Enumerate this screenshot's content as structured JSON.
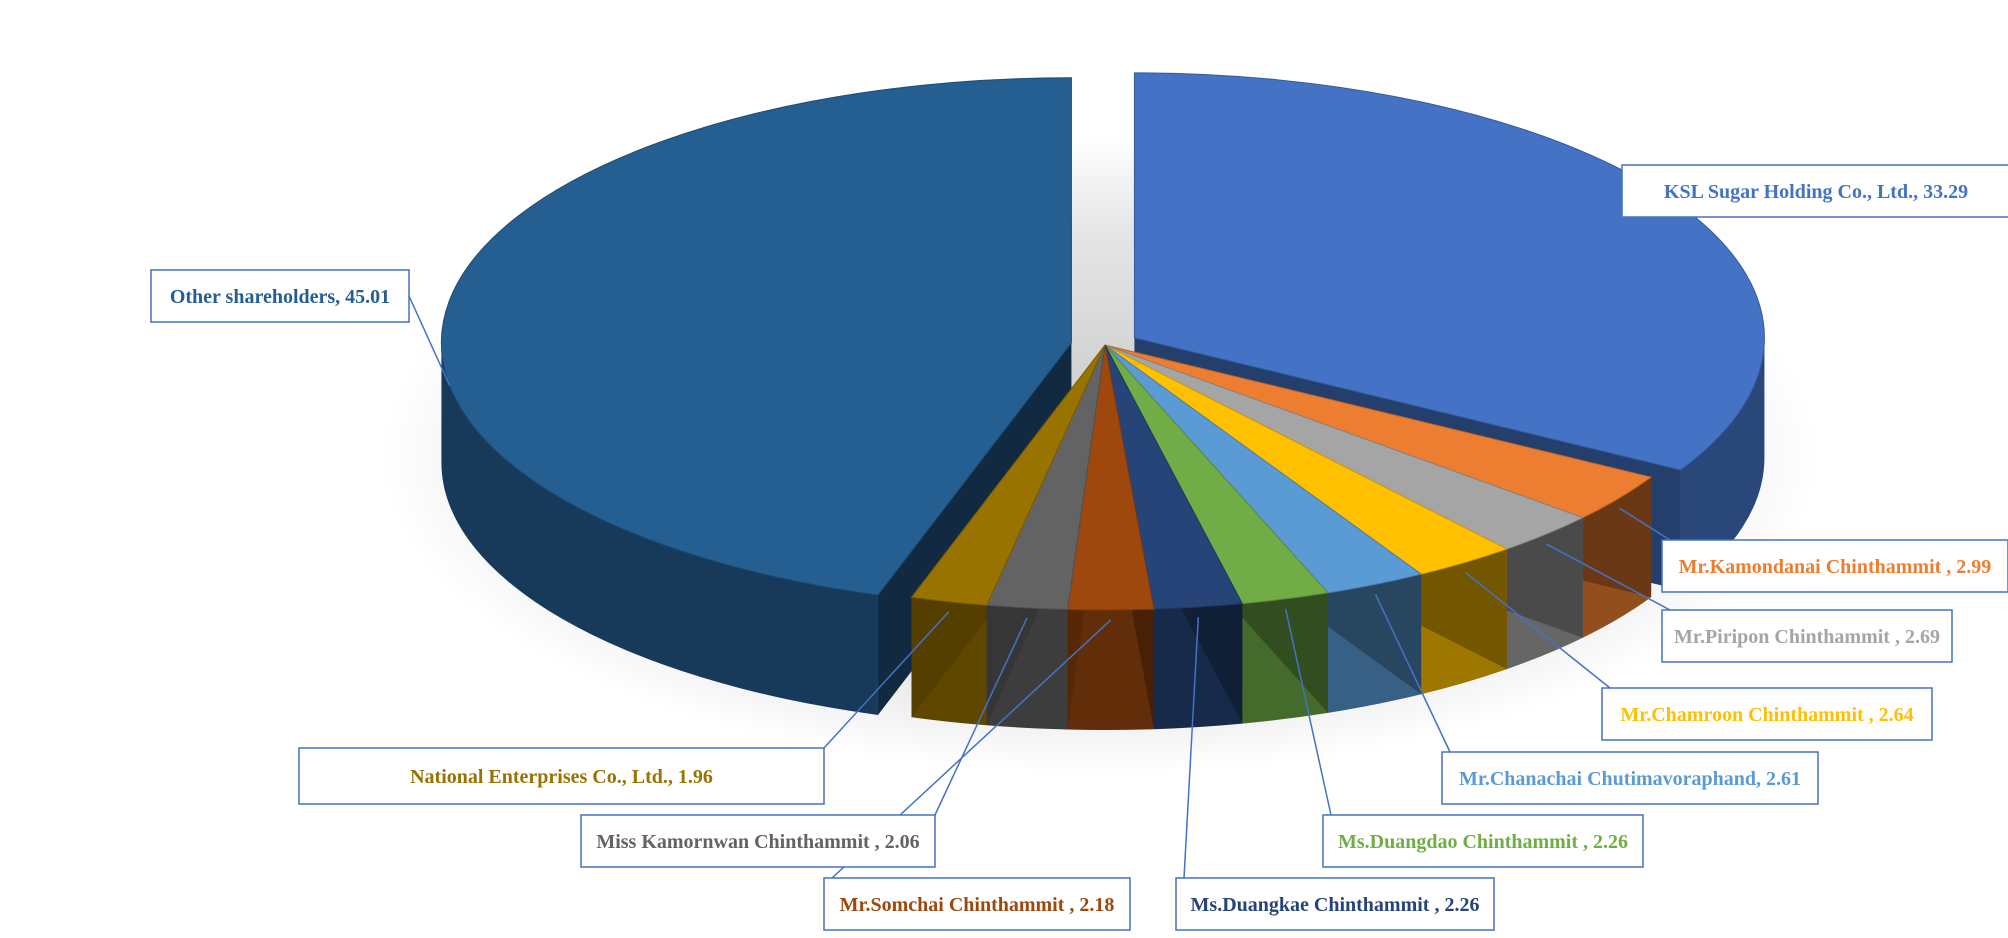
{
  "chart_data": {
    "type": "pie",
    "style": "3d-exploded",
    "legend": "none",
    "data_labels": "outside-callout",
    "slices": [
      {
        "label": "KSL Sugar Holding Co., Ltd.,",
        "value": 33.29,
        "color": "#4472C4",
        "text_color": "#4472C4",
        "label_text": "KSL Sugar Holding Co., Ltd.,  33.29"
      },
      {
        "label": "Mr.Kamondanai Chinthammit ,",
        "value": 2.99,
        "color": "#ED7D31",
        "text_color": "#ED7D31",
        "label_text": "Mr.Kamondanai Chinthammit ,  2.99"
      },
      {
        "label": "Mr.Piripon Chinthammit ,",
        "value": 2.69,
        "color": "#A5A5A5",
        "text_color": "#A5A5A5",
        "label_text": "Mr.Piripon Chinthammit , 2.69"
      },
      {
        "label": "Mr.Chamroon Chinthammit  ,",
        "value": 2.64,
        "color": "#FFC000",
        "text_color": "#FFC000",
        "label_text": "Mr.Chamroon Chinthammit  ,  2.64"
      },
      {
        "label": "Mr.Chanachai Chutimavoraphand,",
        "value": 2.61,
        "color": "#5B9BD5",
        "text_color": "#5B9BD5",
        "label_text": "Mr.Chanachai Chutimavoraphand,  2.61"
      },
      {
        "label": "Ms.Duangdao Chinthammit ,",
        "value": 2.26,
        "color": "#70AD47",
        "text_color": "#70AD47",
        "label_text": "Ms.Duangdao Chinthammit ,  2.26"
      },
      {
        "label": "Ms.Duangkae Chinthammit ,",
        "value": 2.26,
        "color": "#264478",
        "text_color": "#264478",
        "label_text": "Ms.Duangkae Chinthammit ,  2.26"
      },
      {
        "label": "Mr.Somchai Chinthammit ,",
        "value": 2.18,
        "color": "#9E480E",
        "text_color": "#9E480E",
        "label_text": "Mr.Somchai Chinthammit ,  2.18"
      },
      {
        "label": "Miss Kamornwan Chinthammit ,",
        "value": 2.06,
        "color": "#636363",
        "text_color": "#636363",
        "label_text": "Miss Kamornwan Chinthammit ,  2.06"
      },
      {
        "label": "National Enterprises Co., Ltd.,",
        "value": 1.96,
        "color": "#997300",
        "text_color": "#997300",
        "label_text": "National Enterprises Co., Ltd.,  1.96"
      },
      {
        "label": "Other shareholders,",
        "value": 45.01,
        "color": "#255E91",
        "text_color": "#255E91",
        "label_text": "Other shareholders, 45.01"
      }
    ]
  }
}
